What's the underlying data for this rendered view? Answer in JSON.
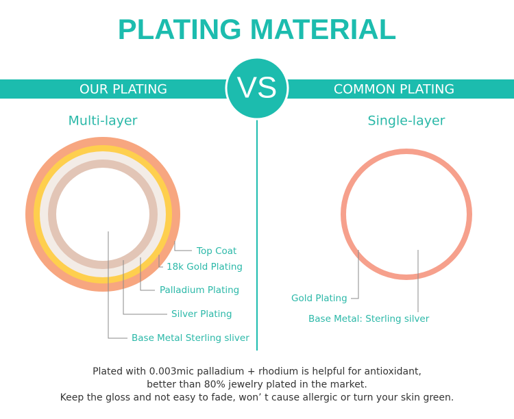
{
  "header": {
    "title": "PLATING MATERIAL"
  },
  "banner": {
    "left": "OUR PLATING",
    "center": "VS",
    "right": "COMMON PLATING"
  },
  "ours": {
    "subtitle": "Multi-layer",
    "layers": [
      "Top Coat",
      "18k Gold Plating",
      "Palladium Plating",
      "Silver Plating",
      "Base Metal Sterling sliver"
    ]
  },
  "common": {
    "subtitle": "Single-layer",
    "layers": [
      "Gold Plating",
      "Base Metal: Sterling silver"
    ]
  },
  "footer": {
    "lines": [
      "Plated with 0.003mic palladium + rhodium is helpful for antioxidant,",
      "better than 80% jewelry plated in the market.",
      "Keep the gloss and not easy to fade, won’ t cause allergic or turn your skin green."
    ]
  }
}
